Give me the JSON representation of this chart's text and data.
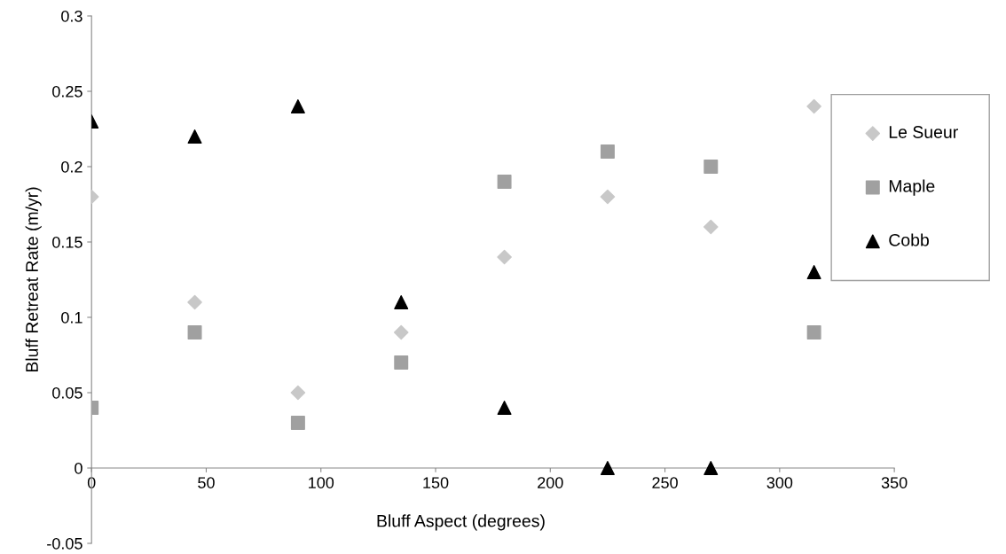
{
  "chart_data": {
    "type": "scatter",
    "xlabel": "Bluff Aspect (degrees)",
    "ylabel": "Bluff Retreat Rate (m/yr)",
    "x": [
      0,
      45,
      90,
      135,
      180,
      225,
      270,
      315
    ],
    "series": [
      {
        "name": "Le Sueur",
        "color": "#c8c8c8",
        "marker": "diamond",
        "values": [
          0.18,
          0.11,
          0.05,
          0.09,
          0.14,
          0.18,
          0.16,
          0.24
        ]
      },
      {
        "name": "Maple",
        "color": "#a0a0a0",
        "marker": "square",
        "values": [
          0.04,
          0.09,
          0.03,
          0.07,
          0.19,
          0.21,
          0.2,
          0.09
        ]
      },
      {
        "name": "Cobb",
        "color": "#000000",
        "marker": "triangle",
        "values": [
          0.23,
          0.22,
          0.24,
          0.11,
          0.04,
          0,
          0,
          0.13
        ]
      }
    ],
    "xlim": [
      0,
      350
    ],
    "xticks": [
      0,
      50,
      100,
      150,
      200,
      250,
      300,
      350
    ],
    "ylim": [
      -0.05,
      0.3
    ],
    "yticks": [
      -0.05,
      0,
      0.05,
      0.1,
      0.15,
      0.2,
      0.25,
      0.3
    ],
    "grid": false,
    "legend": "right"
  }
}
